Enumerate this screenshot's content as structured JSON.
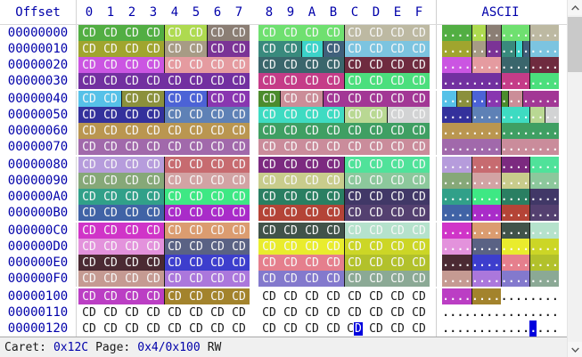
{
  "header": {
    "offset_label": "Offset",
    "hex_columns": [
      "0",
      "1",
      "2",
      "3",
      "4",
      "5",
      "6",
      "7",
      "8",
      "9",
      "A",
      "B",
      "C",
      "D",
      "E",
      "F"
    ],
    "ascii_label": "ASCII"
  },
  "grid": {
    "byte_text": "CD",
    "ascii_char": ".",
    "group_separator_after": [
      3,
      7,
      11,
      15
    ],
    "rows": [
      {
        "offset": "00000000",
        "blocks": [
          [
            4,
            "#52ae43"
          ],
          [
            2,
            "#aeda50"
          ],
          [
            2,
            "#8b7e74"
          ],
          [
            4,
            "#6fe070"
          ],
          [
            4,
            "#bdb9a2"
          ]
        ]
      },
      {
        "offset": "00000010",
        "blocks": [
          [
            4,
            "#a0a52e"
          ],
          [
            2,
            "#a79b85"
          ],
          [
            2,
            "#7b3396"
          ],
          [
            2,
            "#398a7d"
          ],
          [
            1,
            "#3cd3c9"
          ],
          [
            1,
            "#3f607b"
          ],
          [
            4,
            "#7cc4e0"
          ]
        ]
      },
      {
        "offset": "00000020",
        "blocks": [
          [
            4,
            "#cb55e2"
          ],
          [
            4,
            "#e59ba0"
          ],
          [
            4,
            "#3a666c"
          ],
          [
            4,
            "#6f2b3f"
          ]
        ]
      },
      {
        "offset": "00000030",
        "blocks": [
          [
            8,
            "#7230a0"
          ],
          [
            4,
            "#c53c88"
          ],
          [
            4,
            "#4bdf7d"
          ]
        ]
      },
      {
        "offset": "00000040",
        "blocks": [
          [
            2,
            "#56c1e8"
          ],
          [
            2,
            "#8b903c"
          ],
          [
            2,
            "#4c63d6"
          ],
          [
            2,
            "#8936b0"
          ],
          [
            1,
            "#4c8c2d"
          ],
          [
            2,
            "#cb8d98"
          ],
          [
            5,
            "#a23795"
          ]
        ]
      },
      {
        "offset": "00000050",
        "blocks": [
          [
            4,
            "#34319c"
          ],
          [
            4,
            "#5e81b6"
          ],
          [
            4,
            "#3edbc2"
          ],
          [
            2,
            "#b9d893"
          ],
          [
            2,
            "#d2d3d4"
          ]
        ]
      },
      {
        "offset": "00000060",
        "blocks": [
          [
            8,
            "#ba9650"
          ],
          [
            8,
            "#3f9f63"
          ]
        ]
      },
      {
        "offset": "00000070",
        "blocks": [
          [
            8,
            "#a169ab"
          ],
          [
            8,
            "#ca8c9b"
          ]
        ]
      },
      {
        "offset": "00000080",
        "blocks": [
          [
            4,
            "#b69cdc"
          ],
          [
            4,
            "#c76b70"
          ],
          [
            4,
            "#7c2a80"
          ],
          [
            4,
            "#50e29a"
          ]
        ]
      },
      {
        "offset": "00000090",
        "blocks": [
          [
            4,
            "#86a878"
          ],
          [
            4,
            "#d2a3a4"
          ],
          [
            4,
            "#c8cc8c"
          ],
          [
            4,
            "#8cc89c"
          ]
        ]
      },
      {
        "offset": "000000A0",
        "blocks": [
          [
            4,
            "#31a089"
          ],
          [
            4,
            "#3ee884"
          ],
          [
            4,
            "#2a7f62"
          ],
          [
            4,
            "#413867"
          ]
        ]
      },
      {
        "offset": "000000B0",
        "blocks": [
          [
            4,
            "#4063a6"
          ],
          [
            4,
            "#a92cc9"
          ],
          [
            4,
            "#b44437"
          ],
          [
            4,
            "#544070"
          ]
        ]
      },
      {
        "offset": "000000C0",
        "blocks": [
          [
            4,
            "#d034c8"
          ],
          [
            4,
            "#db9c70"
          ],
          [
            4,
            "#41534a"
          ],
          [
            4,
            "#b5e2cc"
          ]
        ]
      },
      {
        "offset": "000000D0",
        "blocks": [
          [
            4,
            "#e392dc"
          ],
          [
            4,
            "#5a6284"
          ],
          [
            4,
            "#e9ec2d"
          ],
          [
            4,
            "#ccd626"
          ]
        ]
      },
      {
        "offset": "000000E0",
        "blocks": [
          [
            4,
            "#4b2a33"
          ],
          [
            4,
            "#3d3ecd"
          ],
          [
            4,
            "#e57f8d"
          ],
          [
            4,
            "#b2c12b"
          ]
        ]
      },
      {
        "offset": "000000F0",
        "blocks": [
          [
            4,
            "#c59a92"
          ],
          [
            4,
            "#ab77dc"
          ],
          [
            4,
            "#8379cd"
          ],
          [
            4,
            "#8ba995"
          ]
        ]
      },
      {
        "offset": "00000100",
        "blocks": [
          [
            4,
            "#bb3ec4"
          ],
          [
            4,
            "#a3832c"
          ],
          [
            8,
            null
          ]
        ]
      },
      {
        "offset": "00000110",
        "blocks": [
          [
            16,
            null
          ]
        ]
      },
      {
        "offset": "00000120",
        "blocks": [
          [
            16,
            null
          ]
        ]
      }
    ]
  },
  "caret": {
    "row_index": 18,
    "col": 12,
    "address": "0x12C",
    "color": "#0000dd"
  },
  "status": {
    "caret_label": "Caret:",
    "caret_value": "0x12C",
    "page_label": "Page:",
    "page_value": "0x4/0x100",
    "access_mode": "RW"
  },
  "icons": {
    "scroll_up": "chevron-up",
    "scroll_down": "chevron-down"
  },
  "palette": {
    "label_text": "#0000aa",
    "byte_on_color": "#f7f7f7",
    "byte_plain": "#1a1a1a",
    "block_border": "#1b1b1b",
    "statusbar_bg": "#f0f0f0"
  }
}
